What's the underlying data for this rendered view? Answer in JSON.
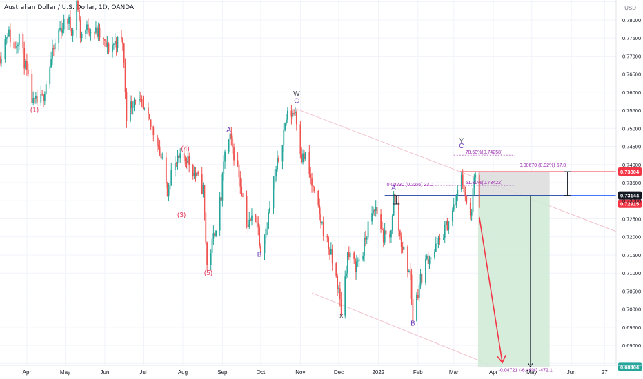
{
  "symbol": "Australian Dollar / U.S. Dollar, 1D, OANDA",
  "currency": "USD",
  "colors": {
    "up": "#26a69a",
    "down": "#ef5350",
    "wave_red": "#e0395a",
    "wave_purple": "#673ab7",
    "wave_dark": "#434651",
    "fib": "#9c27b0",
    "channel": "#f2c3cd",
    "target_fill": "#cfead6",
    "stop_fill": "#dcdcdc",
    "stop_line": "#f23645",
    "entry_line": "#2962ff",
    "arrow": "#f23645",
    "grid": "#f0f3fa",
    "axis_text": "#131722"
  },
  "chart_data": {
    "type": "candlestick",
    "title": "Australian Dollar / U.S. Dollar, 1D, OANDA",
    "ylim": [
      0.6845,
      0.7855
    ],
    "y_ticks": [
      0.685,
      0.69,
      0.695,
      0.7,
      0.705,
      0.71,
      0.715,
      0.72,
      0.725,
      0.73,
      0.735,
      0.74,
      0.745,
      0.75,
      0.755,
      0.76,
      0.765,
      0.77,
      0.775,
      0.78,
      0.785
    ],
    "y_tick_labels": [
      "0.68500",
      "0.69000",
      "0.69500",
      "0.70000",
      "0.70500",
      "0.71000",
      "0.71500",
      "0.72000",
      "0.72500",
      "0.73000",
      "0.73500",
      "0.74000",
      "0.74500",
      "0.75000",
      "0.75500",
      "0.76000",
      "0.76500",
      "0.77000",
      "0.77500",
      "0.78000",
      "0.78500"
    ],
    "x_labels": [
      "Apr",
      "May",
      "Jun",
      "Jul",
      "Aug",
      "Sep",
      "Oct",
      "Nov",
      "Dec",
      "2022",
      "Feb",
      "Mar",
      "Apr",
      "May",
      "Jun",
      "27"
    ],
    "x_label_dates": [
      "2021-04-01",
      "2021-05-01",
      "2021-06-01",
      "2021-07-01",
      "2021-08-01",
      "2021-09-01",
      "2021-10-01",
      "2021-11-01",
      "2021-12-01",
      "2022-01-01",
      "2022-02-01",
      "2022-03-01",
      "2022-04-01",
      "2022-05-01",
      "2022-06-01",
      "2022-06-27"
    ],
    "x_range": [
      "2021-03-11",
      "2022-07-06"
    ],
    "price_path": [
      [
        "2021-03-11",
        0.77
      ],
      [
        "2021-03-17",
        0.777
      ],
      [
        "2021-03-22",
        0.772
      ],
      [
        "2021-03-26",
        0.776
      ],
      [
        "2021-04-02",
        0.763
      ],
      [
        "2021-04-06",
        0.7565
      ],
      [
        "2021-04-13",
        0.758
      ],
      [
        "2021-04-20",
        0.769
      ],
      [
        "2021-04-26",
        0.777
      ],
      [
        "2021-05-03",
        0.78
      ],
      [
        "2021-05-07",
        0.777
      ],
      [
        "2021-05-10",
        0.786
      ],
      [
        "2021-05-13",
        0.776
      ],
      [
        "2021-05-20",
        0.778
      ],
      [
        "2021-05-27",
        0.776
      ],
      [
        "2021-06-03",
        0.772
      ],
      [
        "2021-06-10",
        0.774
      ],
      [
        "2021-06-15",
        0.774
      ],
      [
        "2021-06-18",
        0.754
      ],
      [
        "2021-06-25",
        0.759
      ],
      [
        "2021-07-05",
        0.752
      ],
      [
        "2021-07-12",
        0.747
      ],
      [
        "2021-07-20",
        0.733
      ],
      [
        "2021-07-23",
        0.738
      ],
      [
        "2021-07-29",
        0.741
      ],
      [
        "2021-08-04",
        0.742
      ],
      [
        "2021-08-11",
        0.737
      ],
      [
        "2021-08-17",
        0.733
      ],
      [
        "2021-08-20",
        0.712
      ],
      [
        "2021-08-24",
        0.718
      ],
      [
        "2021-08-31",
        0.731
      ],
      [
        "2021-09-03",
        0.744
      ],
      [
        "2021-09-07",
        0.747
      ],
      [
        "2021-09-13",
        0.739
      ],
      [
        "2021-09-21",
        0.723
      ],
      [
        "2021-09-27",
        0.727
      ],
      [
        "2021-10-01",
        0.717
      ],
      [
        "2021-10-06",
        0.724
      ],
      [
        "2021-10-13",
        0.738
      ],
      [
        "2021-10-21",
        0.753
      ],
      [
        "2021-10-28",
        0.755
      ],
      [
        "2021-11-02",
        0.742
      ],
      [
        "2021-11-05",
        0.742
      ],
      [
        "2021-11-12",
        0.731
      ],
      [
        "2021-11-19",
        0.722
      ],
      [
        "2021-11-24",
        0.716
      ],
      [
        "2021-11-30",
        0.707
      ],
      [
        "2021-12-03",
        0.6995
      ],
      [
        "2021-12-08",
        0.715
      ],
      [
        "2021-12-14",
        0.712
      ],
      [
        "2021-12-20",
        0.716
      ],
      [
        "2021-12-24",
        0.723
      ],
      [
        "2021-12-30",
        0.728
      ],
      [
        "2022-01-05",
        0.72
      ],
      [
        "2022-01-10",
        0.719
      ],
      [
        "2022-01-13",
        0.731
      ],
      [
        "2022-01-18",
        0.72
      ],
      [
        "2022-01-26",
        0.709
      ],
      [
        "2022-01-28",
        0.6975
      ],
      [
        "2022-02-02",
        0.707
      ],
      [
        "2022-02-08",
        0.714
      ],
      [
        "2022-02-14",
        0.716
      ],
      [
        "2022-02-22",
        0.722
      ],
      [
        "2022-02-28",
        0.727
      ],
      [
        "2022-03-03",
        0.73
      ],
      [
        "2022-03-07",
        0.738
      ],
      [
        "2022-03-10",
        0.73
      ],
      [
        "2022-03-14",
        0.725
      ],
      [
        "2022-03-18",
        0.738
      ],
      [
        "2022-03-21",
        0.727
      ]
    ],
    "annotations": [
      {
        "text": "(1)",
        "date": "2021-04-07",
        "price": 0.7545,
        "color": "wave_red"
      },
      {
        "text": "(4)",
        "date": "2021-08-03",
        "price": 0.7438,
        "color": "wave_red"
      },
      {
        "text": "(3)",
        "date": "2021-07-31",
        "price": 0.7255,
        "color": "wave_red"
      },
      {
        "text": "(5)",
        "date": "2021-08-21",
        "price": 0.7095,
        "color": "wave_red"
      },
      {
        "text": "A",
        "date": "2021-09-06",
        "price": 0.749,
        "color": "wave_purple"
      },
      {
        "text": "B",
        "date": "2021-09-30",
        "price": 0.7145,
        "color": "wave_purple"
      },
      {
        "text": "W",
        "date": "2021-10-29",
        "price": 0.759,
        "color": "wave_dark"
      },
      {
        "text": "C",
        "date": "2021-10-29",
        "price": 0.757,
        "color": "wave_purple"
      },
      {
        "text": "X",
        "date": "2021-12-03",
        "price": 0.6975,
        "color": "wave_dark"
      },
      {
        "text": "A",
        "date": "2022-01-13",
        "price": 0.733,
        "color": "wave_purple"
      },
      {
        "text": "B",
        "date": "2022-01-28",
        "price": 0.6955,
        "color": "wave_purple"
      },
      {
        "text": "Y",
        "date": "2022-03-07",
        "price": 0.746,
        "color": "wave_dark"
      },
      {
        "text": "C",
        "date": "2022-03-07",
        "price": 0.7445,
        "color": "wave_purple"
      }
    ],
    "fib_labels": [
      {
        "text": "78.60%(0.74258)",
        "price": 0.74258
      },
      {
        "text": "61.80%(0.73422)",
        "price": 0.73422
      }
    ],
    "measure_labels": [
      {
        "text": "0.00230 (0.32%) 23.0",
        "price": 0.7314
      },
      {
        "text": "0.00670 (0.92%) 67.0",
        "price": 0.73804
      },
      {
        "text": "-0.04721 (-6.46%) -472.1",
        "price": 0.68404
      }
    ],
    "position": {
      "entry": 0.73144,
      "stop": 0.73804,
      "target": 0.68404,
      "start_date": "2022-03-20",
      "end_date": "2022-05-15"
    },
    "price_tags": [
      {
        "value": "0.73804",
        "price": 0.73804,
        "color": "#f23645"
      },
      {
        "value": "0.73144",
        "price": 0.73144,
        "color": "#131722"
      },
      {
        "value": "0.72915",
        "price": 0.72915,
        "color": "#f23645"
      },
      {
        "value": "0.68404",
        "price": 0.68404,
        "color": "#26a69a"
      }
    ]
  }
}
